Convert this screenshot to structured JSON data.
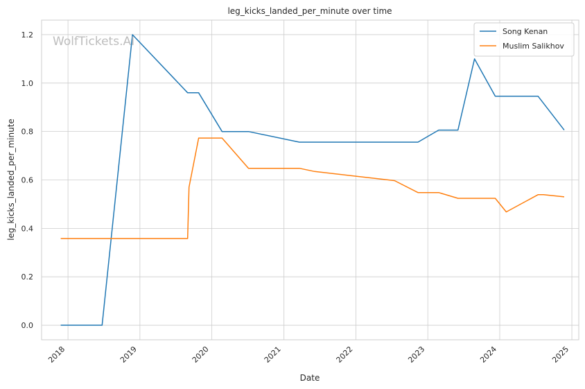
{
  "chart_data": {
    "type": "line",
    "title": "leg_kicks_landed_per_minute over time",
    "xlabel": "Date",
    "ylabel": "leg_kicks_landed_per_minute",
    "watermark": "WolfTickets.AI",
    "x_ticks": [
      "2018",
      "2019",
      "2020",
      "2021",
      "2022",
      "2023",
      "2024",
      "2025"
    ],
    "y_ticks": [
      "0.0",
      "0.2",
      "0.4",
      "0.6",
      "0.8",
      "1.0",
      "1.2"
    ],
    "xlim": [
      "2017-08-20",
      "2025-02-05"
    ],
    "ylim": [
      -0.06,
      1.26
    ],
    "grid": true,
    "legend_position": "top-right",
    "colors": {
      "Song Kenan": "#1f77b4",
      "Muslim Salikhov": "#ff7f0e"
    },
    "series": [
      {
        "name": "Song Kenan",
        "x": [
          "2017-11-25",
          "2018-06-23",
          "2018-11-24",
          "2019-08-31",
          "2019-10-26",
          "2020-02-22",
          "2020-07-05",
          "2021-03-20",
          "2022-11-12",
          "2023-02-25",
          "2023-06-03",
          "2023-08-26",
          "2023-12-09",
          "2024-07-13",
          "2024-11-23"
        ],
        "values": [
          0.0,
          0.0,
          1.2,
          0.96,
          0.96,
          0.8,
          0.8,
          0.756,
          0.756,
          0.806,
          0.806,
          1.1,
          0.946,
          0.946,
          0.806
        ]
      },
      {
        "name": "Muslim Salikhov",
        "x": [
          "2017-11-25",
          "2019-08-31",
          "2019-09-07",
          "2019-10-26",
          "2020-02-22",
          "2020-07-05",
          "2021-03-20",
          "2021-06-05",
          "2022-07-16",
          "2022-11-12",
          "2023-02-25",
          "2023-06-03",
          "2023-12-09",
          "2024-02-03",
          "2024-07-13",
          "2024-08-10",
          "2024-11-23"
        ],
        "values": [
          0.358,
          0.358,
          0.57,
          0.773,
          0.773,
          0.648,
          0.648,
          0.635,
          0.597,
          0.548,
          0.548,
          0.524,
          0.524,
          0.468,
          0.539,
          0.539,
          0.53
        ]
      }
    ]
  }
}
